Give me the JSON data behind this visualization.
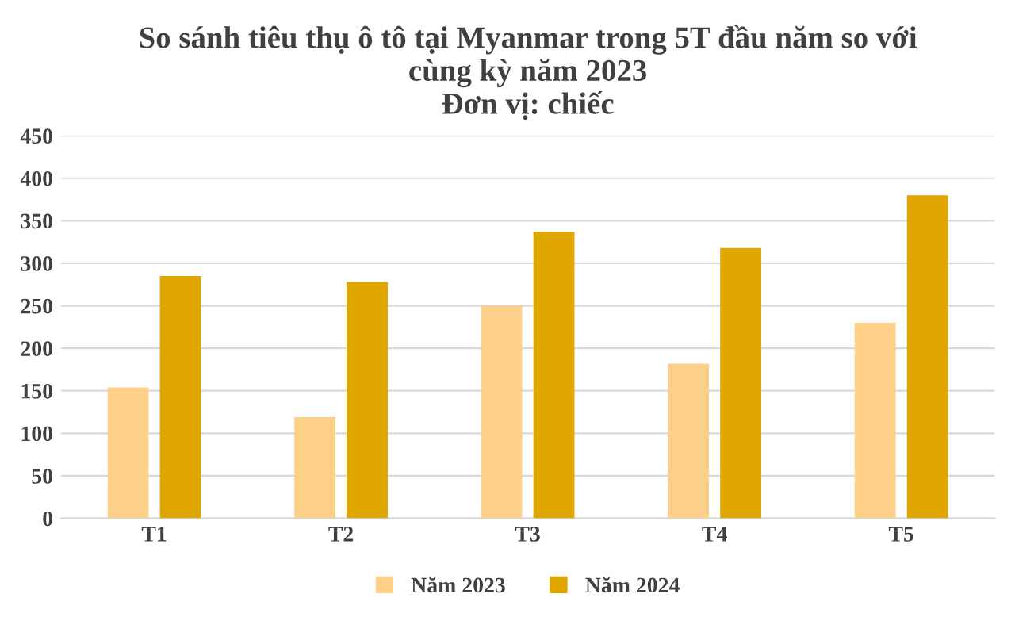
{
  "chart_data": {
    "type": "bar",
    "title": "So sánh tiêu thụ ô tô tại Myanmar trong 5T đầu năm so với\ncùng kỳ năm 2023\nĐơn vị: chiếc",
    "categories": [
      "T1",
      "T2",
      "T3",
      "T4",
      "T5"
    ],
    "series": [
      {
        "name": "Năm 2023",
        "color": "#fdd08a",
        "values": [
          154,
          119,
          250,
          182,
          230
        ]
      },
      {
        "name": "Năm 2024",
        "color": "#e0a600",
        "values": [
          285,
          278,
          337,
          318,
          380
        ]
      }
    ],
    "ylim": [
      0,
      450
    ],
    "yticks": [
      0,
      50,
      100,
      150,
      200,
      250,
      300,
      350,
      400,
      450
    ],
    "grid": "y",
    "legend": "bottom"
  }
}
